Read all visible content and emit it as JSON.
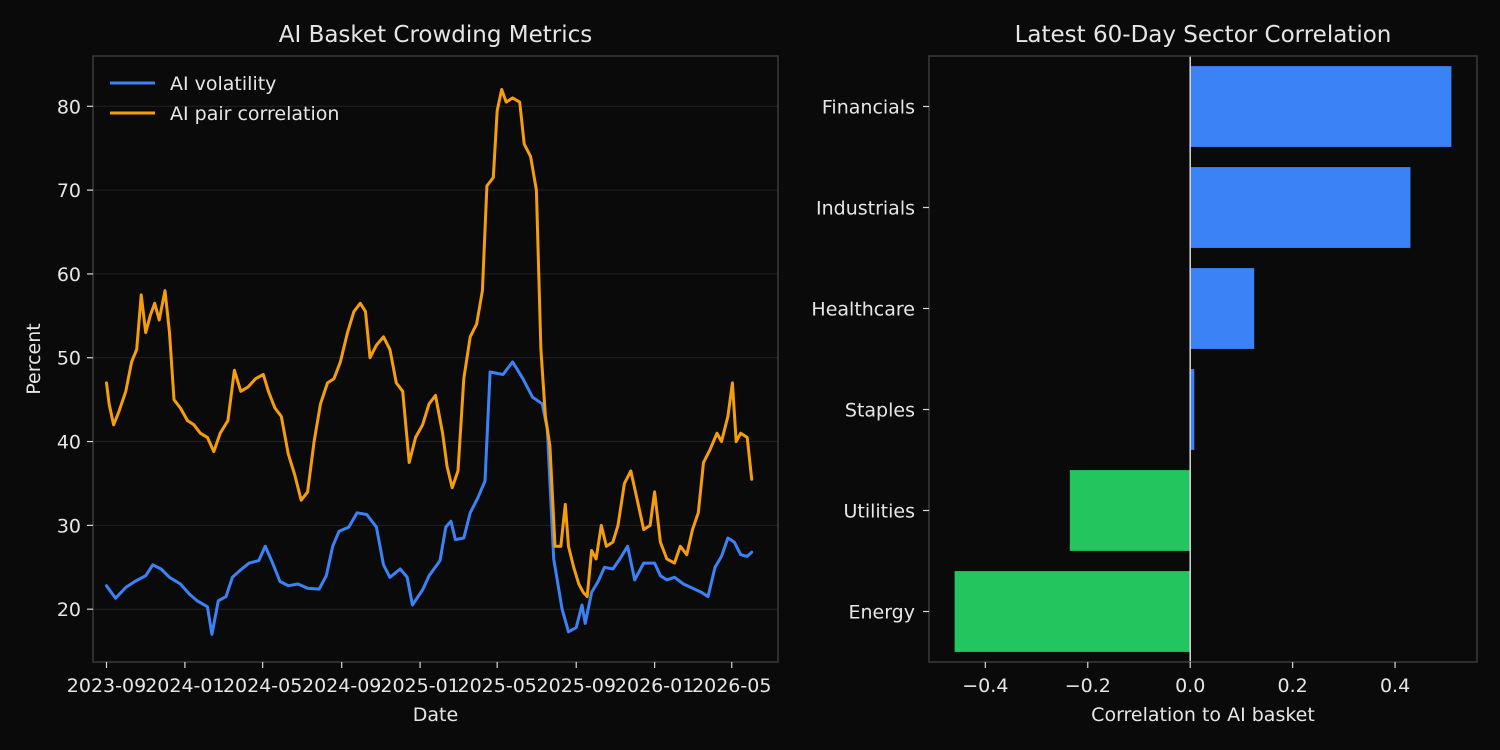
{
  "chart_data": [
    {
      "type": "line",
      "title": "AI Basket Crowding Metrics",
      "xlabel": "Date",
      "ylabel": "Percent",
      "x_ticks": [
        "2023-09",
        "2024-01",
        "2024-05",
        "2024-09",
        "2025-01",
        "2025-05",
        "2025-09",
        "2026-01",
        "2026-05"
      ],
      "y_ticks": [
        20,
        30,
        40,
        50,
        60,
        70,
        80
      ],
      "xlim": [
        "2023-08-11",
        "2026-07-12"
      ],
      "ylim": [
        13.7,
        86.0
      ],
      "grid": true,
      "legend_position": "top-left",
      "colors": {
        "background": "#0a0a0a",
        "axes": "#3a3a3a",
        "grid": "#222222"
      },
      "series": [
        {
          "name": "AI volatility",
          "color": "#3b82f6",
          "points": [
            [
              "2023-09-01",
              22.8
            ],
            [
              "2023-09-15",
              21.3
            ],
            [
              "2023-10-01",
              22.6
            ],
            [
              "2023-10-15",
              23.3
            ],
            [
              "2023-11-01",
              24.0
            ],
            [
              "2023-11-12",
              25.3
            ],
            [
              "2023-11-25",
              24.8
            ],
            [
              "2023-12-08",
              23.8
            ],
            [
              "2023-12-25",
              23.0
            ],
            [
              "2024-01-08",
              21.8
            ],
            [
              "2024-01-20",
              21.0
            ],
            [
              "2024-02-05",
              20.3
            ],
            [
              "2024-02-12",
              17.0
            ],
            [
              "2024-02-22",
              21.0
            ],
            [
              "2024-03-05",
              21.5
            ],
            [
              "2024-03-15",
              23.8
            ],
            [
              "2024-03-28",
              24.7
            ],
            [
              "2024-04-10",
              25.5
            ],
            [
              "2024-04-25",
              25.8
            ],
            [
              "2024-05-05",
              27.5
            ],
            [
              "2024-05-15",
              25.8
            ],
            [
              "2024-05-28",
              23.3
            ],
            [
              "2024-06-10",
              22.8
            ],
            [
              "2024-06-25",
              23.0
            ],
            [
              "2024-07-10",
              22.5
            ],
            [
              "2024-07-28",
              22.4
            ],
            [
              "2024-08-08",
              24.0
            ],
            [
              "2024-08-18",
              27.5
            ],
            [
              "2024-08-28",
              29.3
            ],
            [
              "2024-09-12",
              29.8
            ],
            [
              "2024-09-25",
              31.5
            ],
            [
              "2024-10-10",
              31.3
            ],
            [
              "2024-10-25",
              29.8
            ],
            [
              "2024-11-05",
              25.3
            ],
            [
              "2024-11-15",
              23.8
            ],
            [
              "2024-12-01",
              24.8
            ],
            [
              "2024-12-12",
              23.8
            ],
            [
              "2024-12-20",
              20.5
            ],
            [
              "2025-01-05",
              22.3
            ],
            [
              "2025-01-15",
              24.0
            ],
            [
              "2025-02-01",
              25.8
            ],
            [
              "2025-02-10",
              29.8
            ],
            [
              "2025-02-18",
              30.5
            ],
            [
              "2025-02-25",
              28.3
            ],
            [
              "2025-03-10",
              28.5
            ],
            [
              "2025-03-20",
              31.5
            ],
            [
              "2025-04-01",
              33.3
            ],
            [
              "2025-04-12",
              35.3
            ],
            [
              "2025-04-20",
              48.3
            ],
            [
              "2025-05-10",
              48.0
            ],
            [
              "2025-05-25",
              49.5
            ],
            [
              "2025-06-10",
              47.5
            ],
            [
              "2025-06-25",
              45.3
            ],
            [
              "2025-07-10",
              44.5
            ],
            [
              "2025-07-18",
              41.5
            ],
            [
              "2025-07-28",
              26.0
            ],
            [
              "2025-08-10",
              20.0
            ],
            [
              "2025-08-20",
              17.3
            ],
            [
              "2025-09-01",
              17.8
            ],
            [
              "2025-09-10",
              20.5
            ],
            [
              "2025-09-15",
              18.3
            ],
            [
              "2025-09-25",
              22.0
            ],
            [
              "2025-10-05",
              23.3
            ],
            [
              "2025-10-15",
              25.0
            ],
            [
              "2025-10-28",
              24.8
            ],
            [
              "2025-11-08",
              26.0
            ],
            [
              "2025-11-20",
              27.5
            ],
            [
              "2025-12-01",
              23.5
            ],
            [
              "2025-12-15",
              25.5
            ],
            [
              "2026-01-01",
              25.5
            ],
            [
              "2026-01-10",
              24.0
            ],
            [
              "2026-01-20",
              23.5
            ],
            [
              "2026-02-01",
              23.8
            ],
            [
              "2026-02-15",
              23.0
            ],
            [
              "2026-03-01",
              22.5
            ],
            [
              "2026-03-15",
              22.0
            ],
            [
              "2026-03-25",
              21.5
            ],
            [
              "2026-04-05",
              25.0
            ],
            [
              "2026-04-15",
              26.3
            ],
            [
              "2026-04-25",
              28.5
            ],
            [
              "2026-05-05",
              28.0
            ],
            [
              "2026-05-15",
              26.5
            ],
            [
              "2026-05-25",
              26.3
            ],
            [
              "2026-06-01",
              26.8
            ]
          ]
        },
        {
          "name": "AI pair correlation",
          "color": "#f59e0b",
          "points": [
            [
              "2023-09-01",
              47.0
            ],
            [
              "2023-09-05",
              44.5
            ],
            [
              "2023-09-12",
              42.0
            ],
            [
              "2023-09-20",
              43.5
            ],
            [
              "2023-10-01",
              46.0
            ],
            [
              "2023-10-10",
              49.5
            ],
            [
              "2023-10-18",
              51.0
            ],
            [
              "2023-10-25",
              57.5
            ],
            [
              "2023-11-01",
              53.0
            ],
            [
              "2023-11-08",
              55.0
            ],
            [
              "2023-11-15",
              56.5
            ],
            [
              "2023-11-22",
              54.5
            ],
            [
              "2023-12-01",
              58.0
            ],
            [
              "2023-12-08",
              53.0
            ],
            [
              "2023-12-15",
              45.0
            ],
            [
              "2023-12-25",
              44.0
            ],
            [
              "2024-01-05",
              42.5
            ],
            [
              "2024-01-15",
              42.0
            ],
            [
              "2024-01-25",
              41.0
            ],
            [
              "2024-02-05",
              40.5
            ],
            [
              "2024-02-15",
              38.8
            ],
            [
              "2024-02-25",
              41.0
            ],
            [
              "2024-03-08",
              42.5
            ],
            [
              "2024-03-18",
              48.5
            ],
            [
              "2024-03-28",
              46.0
            ],
            [
              "2024-04-08",
              46.5
            ],
            [
              "2024-04-20",
              47.5
            ],
            [
              "2024-05-02",
              48.0
            ],
            [
              "2024-05-10",
              46.0
            ],
            [
              "2024-05-20",
              44.0
            ],
            [
              "2024-05-30",
              43.0
            ],
            [
              "2024-06-10",
              38.5
            ],
            [
              "2024-06-20",
              36.0
            ],
            [
              "2024-06-30",
              33.0
            ],
            [
              "2024-07-10",
              34.0
            ],
            [
              "2024-07-20",
              40.0
            ],
            [
              "2024-07-30",
              44.5
            ],
            [
              "2024-08-10",
              47.0
            ],
            [
              "2024-08-20",
              47.5
            ],
            [
              "2024-08-30",
              49.5
            ],
            [
              "2024-09-10",
              53.0
            ],
            [
              "2024-09-20",
              55.5
            ],
            [
              "2024-09-30",
              56.5
            ],
            [
              "2024-10-08",
              55.5
            ],
            [
              "2024-10-15",
              50.0
            ],
            [
              "2024-10-25",
              51.5
            ],
            [
              "2024-11-05",
              52.5
            ],
            [
              "2024-11-15",
              51.0
            ],
            [
              "2024-11-25",
              47.0
            ],
            [
              "2024-12-05",
              46.0
            ],
            [
              "2024-12-15",
              37.5
            ],
            [
              "2024-12-25",
              40.5
            ],
            [
              "2025-01-05",
              42.0
            ],
            [
              "2025-01-15",
              44.5
            ],
            [
              "2025-01-25",
              45.5
            ],
            [
              "2025-02-05",
              41.0
            ],
            [
              "2025-02-12",
              37.0
            ],
            [
              "2025-02-20",
              34.5
            ],
            [
              "2025-03-01",
              36.5
            ],
            [
              "2025-03-10",
              47.5
            ],
            [
              "2025-03-20",
              52.5
            ],
            [
              "2025-03-30",
              54.0
            ],
            [
              "2025-04-08",
              58.0
            ],
            [
              "2025-04-15",
              70.5
            ],
            [
              "2025-04-25",
              71.5
            ],
            [
              "2025-05-01",
              79.5
            ],
            [
              "2025-05-08",
              82.0
            ],
            [
              "2025-05-15",
              80.5
            ],
            [
              "2025-05-25",
              81.0
            ],
            [
              "2025-06-05",
              80.5
            ],
            [
              "2025-06-12",
              75.5
            ],
            [
              "2025-06-22",
              74.0
            ],
            [
              "2025-07-01",
              70.0
            ],
            [
              "2025-07-08",
              51.0
            ],
            [
              "2025-07-15",
              43.0
            ],
            [
              "2025-07-22",
              39.5
            ],
            [
              "2025-07-30",
              27.5
            ],
            [
              "2025-08-08",
              27.5
            ],
            [
              "2025-08-15",
              32.5
            ],
            [
              "2025-08-20",
              27.5
            ],
            [
              "2025-08-28",
              25.0
            ],
            [
              "2025-09-05",
              23.0
            ],
            [
              "2025-09-12",
              22.0
            ],
            [
              "2025-09-18",
              21.5
            ],
            [
              "2025-09-25",
              27.0
            ],
            [
              "2025-10-02",
              26.0
            ],
            [
              "2025-10-10",
              30.0
            ],
            [
              "2025-10-18",
              27.5
            ],
            [
              "2025-10-28",
              28.0
            ],
            [
              "2025-11-05",
              30.0
            ],
            [
              "2025-11-15",
              35.0
            ],
            [
              "2025-11-25",
              36.5
            ],
            [
              "2025-12-05",
              33.0
            ],
            [
              "2025-12-15",
              29.5
            ],
            [
              "2025-12-25",
              30.0
            ],
            [
              "2026-01-01",
              34.0
            ],
            [
              "2026-01-10",
              28.0
            ],
            [
              "2026-01-20",
              26.0
            ],
            [
              "2026-02-01",
              25.5
            ],
            [
              "2026-02-10",
              27.5
            ],
            [
              "2026-02-20",
              26.5
            ],
            [
              "2026-03-01",
              29.5
            ],
            [
              "2026-03-10",
              31.5
            ],
            [
              "2026-03-18",
              37.5
            ],
            [
              "2026-03-28",
              39.0
            ],
            [
              "2026-04-08",
              41.0
            ],
            [
              "2026-04-15",
              40.0
            ],
            [
              "2026-04-25",
              43.0
            ],
            [
              "2026-05-02",
              47.0
            ],
            [
              "2026-05-08",
              40.0
            ],
            [
              "2026-05-15",
              41.0
            ],
            [
              "2026-05-25",
              40.5
            ],
            [
              "2026-06-01",
              35.5
            ]
          ]
        }
      ]
    },
    {
      "type": "bar",
      "orientation": "horizontal",
      "title": "Latest 60-Day Sector Correlation",
      "xlabel": "Correlation to AI basket",
      "ylabel": "",
      "xlim": [
        -0.51,
        0.56
      ],
      "x_ticks": [
        -0.4,
        -0.2,
        0.0,
        0.2,
        0.4
      ],
      "x_tick_labels": [
        "−0.4",
        "−0.2",
        "0.0",
        "0.2",
        "0.4"
      ],
      "zero_line": true,
      "colors": {
        "positive": "#3b82f6",
        "negative": "#22c55e",
        "zero_line": "#d9d9d9",
        "axes": "#3a3a3a"
      },
      "categories": [
        "Financials",
        "Industrials",
        "Healthcare",
        "Staples",
        "Utilities",
        "Energy"
      ],
      "values": [
        0.51,
        0.43,
        0.125,
        0.008,
        -0.235,
        -0.46
      ]
    }
  ]
}
